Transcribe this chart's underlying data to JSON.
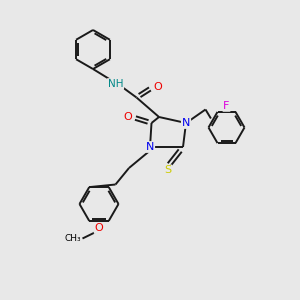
{
  "bg_color": "#e8e8e8",
  "colors": {
    "C": "#000000",
    "N": "#0000ee",
    "O": "#ee0000",
    "S": "#cccc00",
    "F": "#dd00dd",
    "NH": "#008888",
    "bond": "#1a1a1a"
  },
  "lw": 1.4
}
